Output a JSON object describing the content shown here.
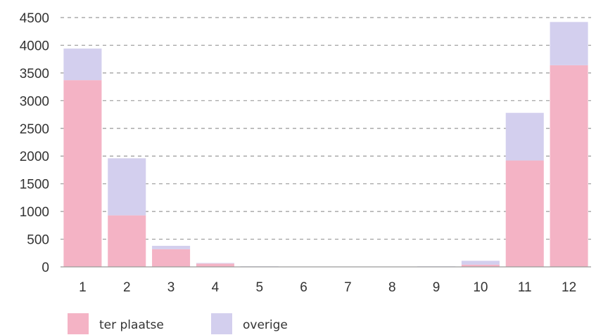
{
  "chart_data": {
    "type": "bar",
    "stacked": true,
    "categories": [
      "1",
      "2",
      "3",
      "4",
      "5",
      "6",
      "7",
      "8",
      "9",
      "10",
      "11",
      "12"
    ],
    "series": [
      {
        "name": "ter plaatse",
        "color": "#f4b3c5",
        "values": [
          3370,
          930,
          320,
          60,
          5,
          0,
          0,
          0,
          5,
          40,
          1920,
          3640
        ]
      },
      {
        "name": "overige",
        "color": "#d3cfee",
        "values": [
          570,
          1030,
          60,
          10,
          5,
          0,
          0,
          0,
          5,
          70,
          860,
          780
        ]
      }
    ],
    "ylim": [
      0,
      4500
    ],
    "yticks": [
      "0",
      "500",
      "1000",
      "1500",
      "2000",
      "2500",
      "3000",
      "3500",
      "4000",
      "4500"
    ],
    "grid": true,
    "legend_position": "bottom-left",
    "title": "",
    "xlabel": "",
    "ylabel": ""
  }
}
